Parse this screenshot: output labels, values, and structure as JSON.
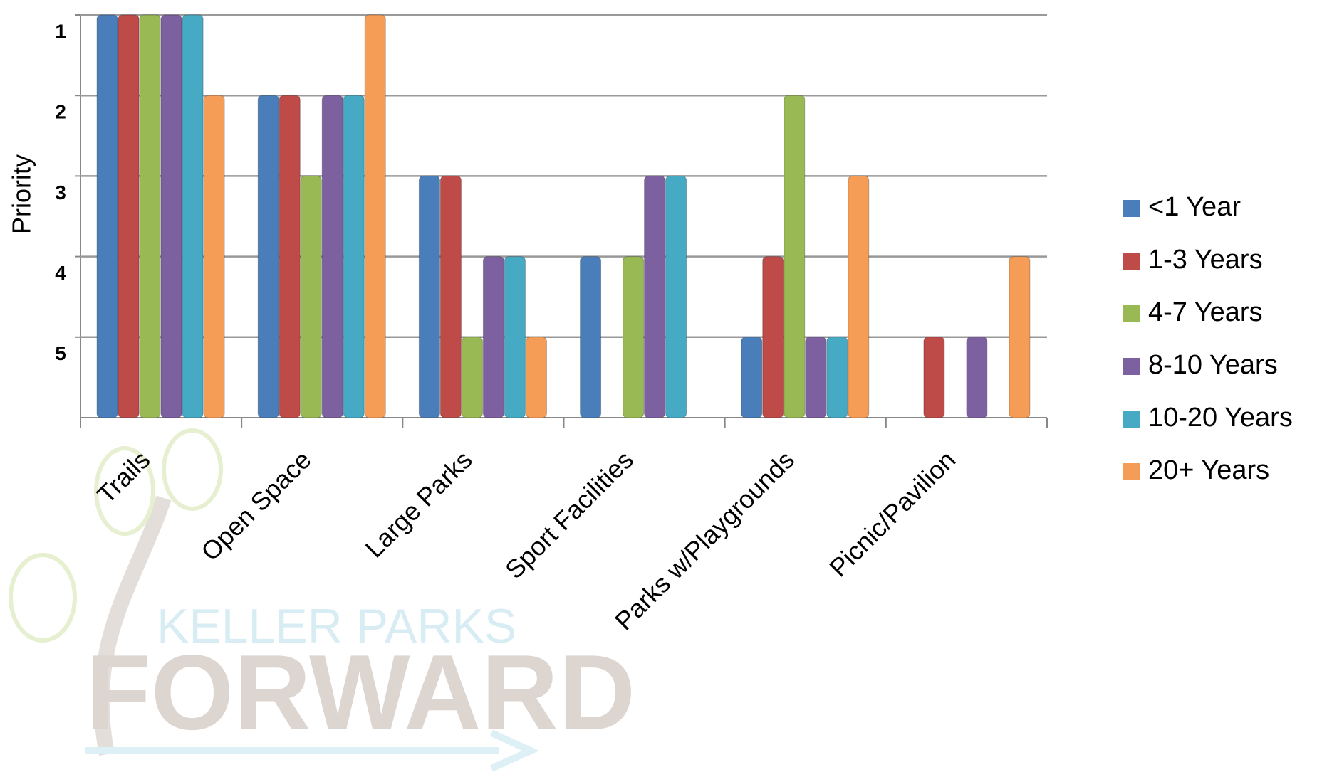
{
  "chart_data": {
    "type": "bar",
    "y_label": "Priority",
    "categories": [
      "Trails",
      "Open Space",
      "Large Parks",
      "Sport Facilities",
      "Parks w/Playgrounds",
      "Picnic/Pavilion"
    ],
    "series": [
      {
        "name": "<1 Year",
        "color": "#4a7ebb",
        "values": [
          1,
          2,
          3,
          4,
          5,
          null
        ]
      },
      {
        "name": "1-3 Years",
        "color": "#be4b48",
        "values": [
          1,
          2,
          3,
          null,
          4,
          5
        ]
      },
      {
        "name": "4-7 Years",
        "color": "#98b954",
        "values": [
          1,
          3,
          5,
          4,
          2,
          null
        ]
      },
      {
        "name": "8-10 Years",
        "color": "#7d60a0",
        "values": [
          1,
          2,
          4,
          3,
          5,
          5
        ]
      },
      {
        "name": "10-20 Years",
        "color": "#46aac5",
        "values": [
          1,
          2,
          4,
          3,
          5,
          null
        ]
      },
      {
        "name": "20+ Years",
        "color": "#f59d56",
        "values": [
          2,
          1,
          5,
          null,
          3,
          4
        ]
      }
    ],
    "ylim": [
      6,
      1
    ],
    "yticks": [
      1,
      2,
      3,
      4,
      5
    ],
    "grid": true,
    "legend": "right",
    "watermark": {
      "top": "KELLER PARKS",
      "bottom": "FORWARD"
    }
  }
}
